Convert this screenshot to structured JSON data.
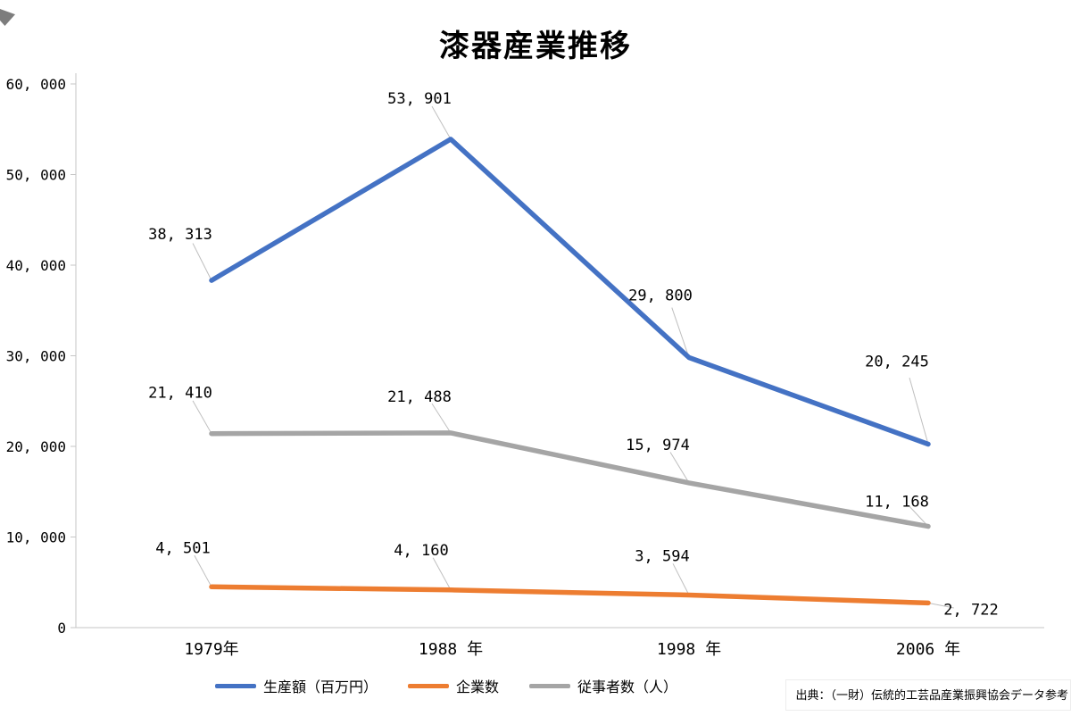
{
  "title": "漆器産業推移",
  "source_note": "出典：（一財）伝統的工芸品産業振興協会データ参考",
  "chart_data": {
    "type": "line",
    "title": "漆器産業推移",
    "xlabel": "",
    "ylabel": "",
    "categories": [
      "1979年",
      "1988 年",
      "1998 年",
      "2006 年"
    ],
    "series": [
      {
        "name": "生産額（百万円）",
        "color": "#4472C4",
        "values": [
          38313,
          53901,
          29800,
          20245
        ],
        "label_offsets": [
          [
            -35,
            -52
          ],
          [
            -35,
            -46
          ],
          [
            -32,
            -70
          ],
          [
            -35,
            -93
          ]
        ]
      },
      {
        "name": "企業数",
        "color": "#ED7D31",
        "values": [
          4501,
          4160,
          3594,
          2722
        ],
        "label_offsets": [
          [
            -32,
            -44
          ],
          [
            -33,
            -45
          ],
          [
            -30,
            -44
          ],
          [
            48,
            7
          ]
        ]
      },
      {
        "name": "従事者数（人）",
        "color": "#A5A5A5",
        "values": [
          21410,
          21488,
          15974,
          11168
        ],
        "label_offsets": [
          [
            -35,
            -46
          ],
          [
            -35,
            -41
          ],
          [
            -35,
            -43
          ],
          [
            -35,
            -28
          ]
        ]
      }
    ],
    "ylim": [
      0,
      60000
    ],
    "ytick_step": 10000,
    "ytick_labels": [
      "0",
      "10, 000",
      "20, 000",
      "30, 000",
      "40, 000",
      "50, 000",
      "60, 000"
    ],
    "grid": false,
    "legend_position": "bottom",
    "line_width": 5.5,
    "leader_line_color": "#BFBFBF",
    "axis_color": "#C6C6C6",
    "text_color": "#000000"
  }
}
